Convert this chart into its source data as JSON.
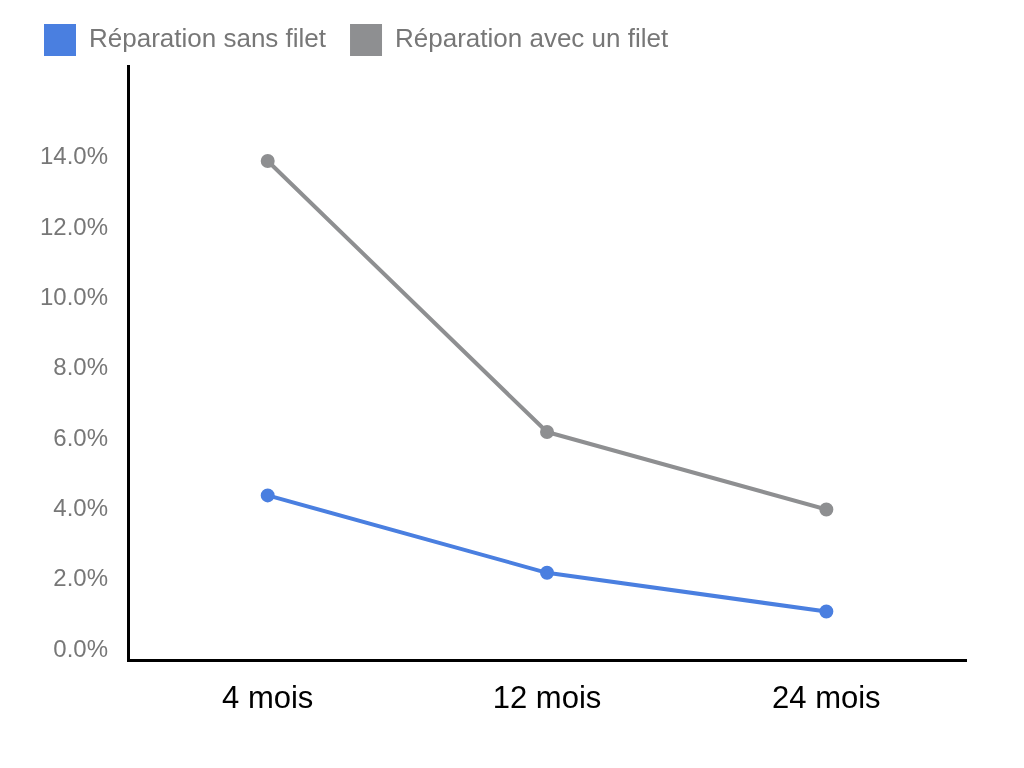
{
  "chart_data": {
    "type": "line",
    "categories": [
      "4 mois",
      "12 mois",
      "24 mois"
    ],
    "series": [
      {
        "name": "Réparation sans filet",
        "color": "#4a7fe0",
        "values": [
          4.4,
          2.2,
          1.1
        ]
      },
      {
        "name": "Réparation avec un filet",
        "color": "#8e8f91",
        "values": [
          13.9,
          6.2,
          4.0
        ]
      }
    ],
    "ylim": [
      -0.3,
      16.6
    ],
    "yticks": [
      {
        "value": 0,
        "label": "0.0%"
      },
      {
        "value": 2,
        "label": "2.0%"
      },
      {
        "value": 4,
        "label": "4.0%"
      },
      {
        "value": 6,
        "label": "6.0%"
      },
      {
        "value": 8,
        "label": "8.0%"
      },
      {
        "value": 10,
        "label": "10.0%"
      },
      {
        "value": 12,
        "label": "12.0%"
      },
      {
        "value": 14,
        "label": "14.0%"
      }
    ],
    "grid": false,
    "legend": "top",
    "marker": "circle",
    "line_style": "solid"
  }
}
